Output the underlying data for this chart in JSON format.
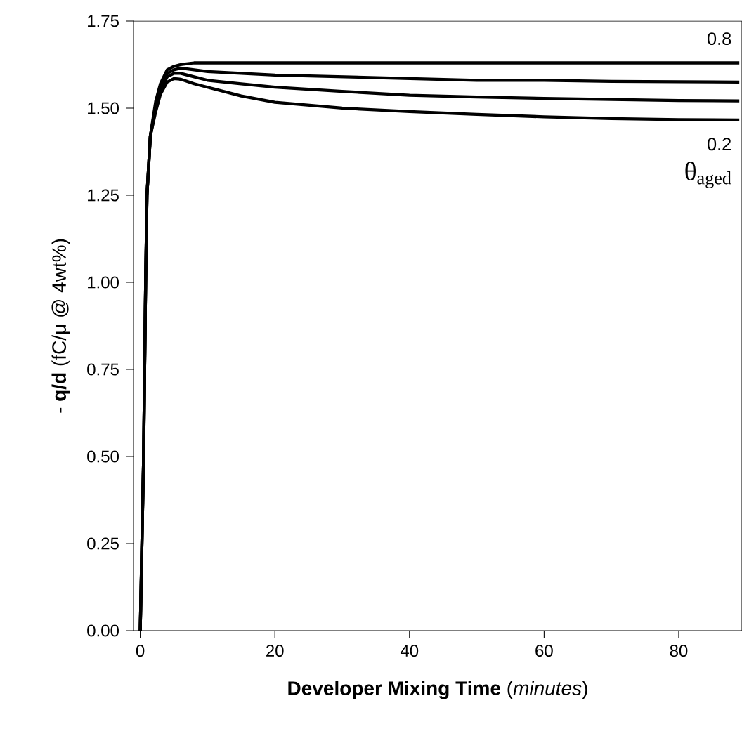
{
  "chart_data": {
    "type": "line",
    "xlabel": "**Developer Mixing Time** (*minutes*)",
    "ylabel": "- **q/d** (fC/μ @ 4wt%)",
    "x": [
      0,
      0.5,
      0.8,
      1,
      1.5,
      2.3,
      3,
      4,
      5,
      6,
      8,
      10,
      15,
      20,
      30,
      40,
      50,
      60,
      70,
      80,
      89
    ],
    "series": [
      {
        "name": "0.8",
        "color": "#000000",
        "values": [
          0,
          0.5,
          1.0,
          1.25,
          1.42,
          1.52,
          1.57,
          1.61,
          1.62,
          1.625,
          1.63,
          1.63,
          1.63,
          1.63,
          1.63,
          1.63,
          1.63,
          1.63,
          1.63,
          1.63,
          1.63
        ]
      },
      {
        "color": "#000000",
        "values": [
          0,
          0.5,
          1.0,
          1.25,
          1.42,
          1.51,
          1.56,
          1.6,
          1.61,
          1.615,
          1.61,
          1.605,
          1.6,
          1.595,
          1.59,
          1.585,
          1.58,
          1.58,
          1.577,
          1.576,
          1.575
        ]
      },
      {
        "color": "#000000",
        "values": [
          0,
          0.5,
          1.0,
          1.25,
          1.42,
          1.5,
          1.55,
          1.59,
          1.6,
          1.6,
          1.59,
          1.58,
          1.57,
          1.56,
          1.548,
          1.537,
          1.532,
          1.528,
          1.525,
          1.522,
          1.521
        ]
      },
      {
        "name": "0.2",
        "color": "#000000",
        "values": [
          0,
          0.5,
          1.0,
          1.25,
          1.42,
          1.49,
          1.54,
          1.575,
          1.585,
          1.583,
          1.57,
          1.56,
          1.535,
          1.517,
          1.5,
          1.49,
          1.482,
          1.475,
          1.47,
          1.467,
          1.466
        ]
      }
    ],
    "xlim": [
      -1,
      89.4
    ],
    "ylim": [
      0,
      1.75
    ],
    "xticks": [
      0,
      20,
      40,
      60,
      80
    ],
    "yticks": [
      {
        "value": 0,
        "label": "0.00"
      },
      {
        "value": 0.25,
        "label": "0.25"
      },
      {
        "value": 0.5,
        "label": "0.50"
      },
      {
        "value": 0.75,
        "label": "0.75"
      },
      {
        "value": 1,
        "label": "1.00"
      },
      {
        "value": 1.25,
        "label": "1.25"
      },
      {
        "value": 1.5,
        "label": "1.50"
      },
      {
        "value": 1.75,
        "label": "1.75"
      }
    ],
    "annotations": [
      "θ$_{aged}$"
    ],
    "line_style": "solid",
    "marker": "none"
  }
}
